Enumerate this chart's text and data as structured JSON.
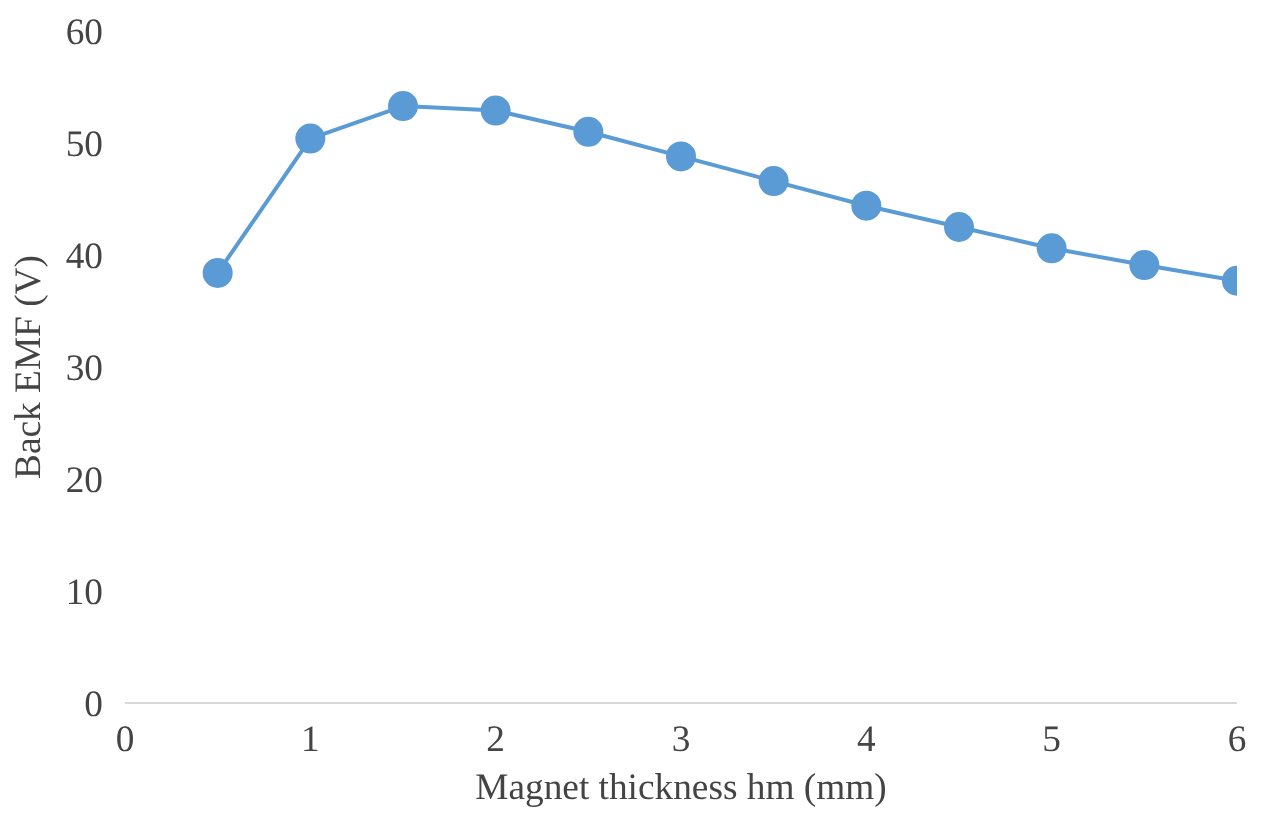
{
  "chart_data": {
    "type": "line",
    "xlabel": "Magnet thickness hm (mm)",
    "ylabel": "Back EMF (V)",
    "x": [
      0.5,
      1,
      1.5,
      2,
      2.5,
      3,
      3.5,
      4,
      4.5,
      5,
      5.5,
      6
    ],
    "series": [
      {
        "color": "#5b9bd5",
        "values": [
          38.4,
          50.4,
          53.3,
          52.9,
          51.0,
          48.8,
          46.6,
          44.4,
          42.5,
          40.6,
          39.1,
          37.7
        ]
      }
    ],
    "xlim": [
      0,
      6
    ],
    "xticks": [
      0,
      1,
      2,
      3,
      4,
      5,
      6
    ],
    "ylim": [
      0,
      60
    ],
    "yticks": [
      0,
      10,
      20,
      30,
      40,
      50,
      60
    ],
    "grid": false,
    "marker": "circle",
    "line_style": "solid"
  }
}
